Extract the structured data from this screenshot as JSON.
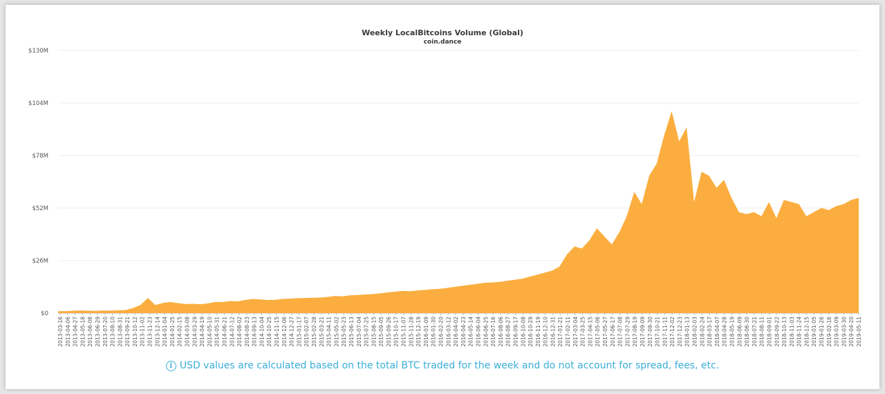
{
  "chart_data": {
    "type": "area",
    "title": "Weekly LocalBitcoins Volume (Global)",
    "subtitle": "coin.dance",
    "xlabel": "",
    "ylabel": "",
    "ylim": [
      0,
      130
    ],
    "unit": "USD millions",
    "yticks": [
      "$0",
      "$26M",
      "$52M",
      "$78M",
      "$104M",
      "$130M"
    ],
    "grid": true,
    "legend": "none",
    "color": "#fbae3f",
    "xticks": [
      "2013-03-16",
      "2013-04-06",
      "2013-04-27",
      "2013-05-18",
      "2013-06-08",
      "2013-06-29",
      "2013-07-20",
      "2013-08-10",
      "2013-08-31",
      "2013-09-21",
      "2013-10-12",
      "2013-11-02",
      "2013-11-23",
      "2013-12-14",
      "2014-01-04",
      "2014-01-25",
      "2014-02-15",
      "2014-03-08",
      "2014-03-29",
      "2014-04-19",
      "2014-05-10",
      "2014-05-31",
      "2014-06-21",
      "2014-07-12",
      "2014-08-02",
      "2014-08-23",
      "2014-09-13",
      "2014-10-04",
      "2014-10-25",
      "2014-11-15",
      "2014-12-06",
      "2014-12-27",
      "2015-01-17",
      "2015-02-07",
      "2015-02-28",
      "2015-03-21",
      "2015-04-11",
      "2015-05-02",
      "2015-05-23",
      "2015-06-13",
      "2015-07-04",
      "2015-07-25",
      "2015-08-15",
      "2015-09-05",
      "2015-09-26",
      "2015-10-17",
      "2015-11-07",
      "2015-11-28",
      "2015-12-19",
      "2016-01-09",
      "2016-01-30",
      "2016-02-20",
      "2016-03-12",
      "2016-04-02",
      "2016-04-23",
      "2016-05-14",
      "2016-06-04",
      "2016-06-25",
      "2016-07-16",
      "2016-08-06",
      "2016-08-27",
      "2016-09-17",
      "2016-10-08",
      "2016-10-29",
      "2016-11-19",
      "2016-12-10",
      "2016-12-31",
      "2017-01-21",
      "2017-02-11",
      "2017-03-04",
      "2017-03-25",
      "2017-04-15",
      "2017-05-06",
      "2017-05-27",
      "2017-06-17",
      "2017-07-08",
      "2017-07-29",
      "2017-08-19",
      "2017-09-09",
      "2017-09-30",
      "2017-10-21",
      "2017-11-11",
      "2017-12-02",
      "2017-12-23",
      "2018-01-13",
      "2018-02-03",
      "2018-02-24",
      "2018-03-17",
      "2018-04-07",
      "2018-04-28",
      "2018-05-19",
      "2018-06-09",
      "2018-06-30",
      "2018-07-21",
      "2018-08-11",
      "2018-09-01",
      "2018-09-22",
      "2018-10-13",
      "2018-11-03",
      "2018-11-24",
      "2018-12-15",
      "2019-01-05",
      "2019-01-26",
      "2019-02-16",
      "2019-03-09",
      "2019-03-30",
      "2019-04-20",
      "2019-05-11"
    ],
    "values": [
      1,
      1,
      1.2,
      1.3,
      1.2,
      1.1,
      1.3,
      1.2,
      1.4,
      1.5,
      2.5,
      4,
      7.5,
      4,
      5,
      5.5,
      5,
      4.5,
      4.6,
      4.4,
      4.8,
      5.5,
      5.5,
      6,
      5.8,
      6.5,
      7,
      6.8,
      6.5,
      6.6,
      7,
      7.2,
      7.4,
      7.5,
      7.6,
      7.7,
      8,
      8.5,
      8.3,
      8.8,
      9,
      9.2,
      9.4,
      9.8,
      10.2,
      10.6,
      11,
      10.8,
      11.2,
      11.5,
      11.8,
      12,
      12.5,
      13,
      13.5,
      14,
      14.5,
      15,
      15.2,
      15.5,
      16,
      16.5,
      17,
      18,
      19,
      20,
      21,
      23,
      29,
      33,
      32,
      36,
      42,
      38,
      34,
      40,
      48,
      60,
      54,
      68,
      74,
      88,
      100,
      85,
      92,
      55,
      70,
      68,
      62,
      66,
      57,
      50,
      49,
      50,
      48,
      55,
      47,
      56,
      55,
      54,
      48,
      50,
      52,
      51,
      53,
      54,
      56,
      57
    ]
  },
  "footnote": {
    "icon": "info-icon",
    "text": "USD values are calculated based on the total BTC traded for the week and do not account for spread, fees, etc."
  }
}
